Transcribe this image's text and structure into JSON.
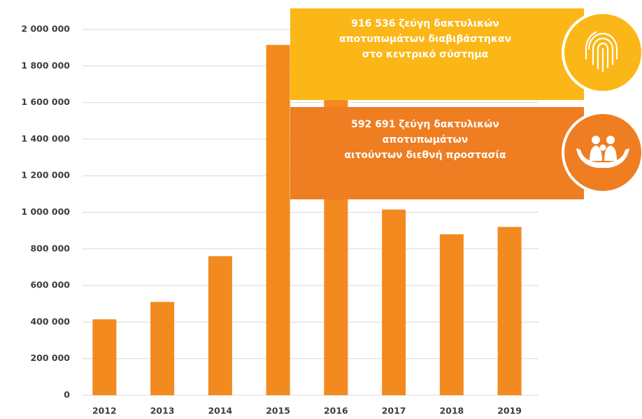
{
  "chart_data": {
    "type": "bar",
    "categories": [
      "2012",
      "2013",
      "2014",
      "2015",
      "2016",
      "2017",
      "2018",
      "2019"
    ],
    "values": [
      415000,
      510000,
      760000,
      1915000,
      1650000,
      1015000,
      880000,
      920000
    ],
    "color": "#f28a1f",
    "ylim": [
      0,
      2000000
    ],
    "yticks": [
      0,
      {
        "value": 200000,
        "label": "200 000"
      },
      {
        "value": 400000,
        "label": "400 000"
      },
      {
        "value": 600000,
        "label": "600 000"
      },
      {
        "value": 800000,
        "label": "800 000"
      },
      {
        "value": 1000000,
        "label": "1 000 000"
      },
      {
        "value": 1200000,
        "label": "1 200 000"
      },
      {
        "value": 1400000,
        "label": "1 400 000"
      },
      {
        "value": 1600000,
        "label": "1 600 000"
      },
      {
        "value": 1800000,
        "label": "1 800 000"
      },
      {
        "value": 2000000,
        "label": "2 000 000"
      }
    ],
    "grid": true,
    "annotations": [
      [
        "916 536 ζεύγη δακτυλικών",
        "αποτυπωμάτων διαβιβάστηκαν",
        "στο κεντρικό σύστημα"
      ],
      [
        "592 691 ζεύγη δακτυλικών",
        "αποτυπωμάτων",
        "αιτούντων διεθνή προστασία"
      ]
    ]
  }
}
